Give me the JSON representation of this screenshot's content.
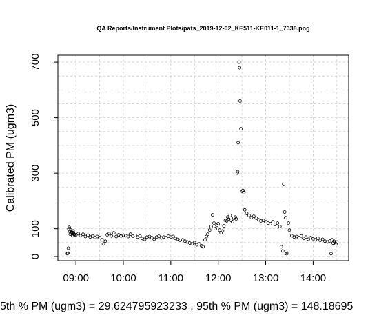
{
  "footer_text": "5th % PM (ugm3) =  29.624795923233 , 95th % PM (ugm3)  =  148.18695",
  "chart_data": {
    "type": "scatter",
    "title": "QA Reports/Instrument Plots/pats_2019-12-02_KE511-KE011-1_7338.png",
    "xlabel": "",
    "ylabel": "Calibrated PM (ugm3)",
    "x_unit": "time of day (hours)",
    "xlim": [
      8.62,
      14.75
    ],
    "ylim": [
      -15,
      725
    ],
    "x_ticks": [
      {
        "v": 9,
        "label": "09:00"
      },
      {
        "v": 10,
        "label": "10:00"
      },
      {
        "v": 11,
        "label": "11:00"
      },
      {
        "v": 12,
        "label": "12:00"
      },
      {
        "v": 13,
        "label": "13:00"
      },
      {
        "v": 14,
        "label": "14:00"
      }
    ],
    "y_ticks": [
      {
        "v": 0,
        "label": "0"
      },
      {
        "v": 100,
        "label": "100"
      },
      {
        "v": 300,
        "label": "300"
      },
      {
        "v": 500,
        "label": "500"
      },
      {
        "v": 700,
        "label": "700"
      }
    ],
    "grid_x": [
      9,
      9.5,
      10,
      10.5,
      11,
      11.5,
      12,
      12.5,
      13,
      13.5,
      14,
      14.5
    ],
    "grid_y": [
      0,
      50,
      100,
      200,
      250,
      300,
      350,
      400,
      450,
      500,
      550,
      600,
      650,
      700
    ],
    "grid": true,
    "marker": "open-circle",
    "points": [
      [
        8.82,
        10
      ],
      [
        8.83,
        12
      ],
      [
        8.84,
        30
      ],
      [
        8.85,
        100
      ],
      [
        8.86,
        105
      ],
      [
        8.87,
        90
      ],
      [
        8.88,
        80
      ],
      [
        8.89,
        95
      ],
      [
        8.9,
        85
      ],
      [
        8.91,
        88
      ],
      [
        8.92,
        82
      ],
      [
        8.93,
        75
      ],
      [
        8.94,
        92
      ],
      [
        8.95,
        86
      ],
      [
        8.96,
        80
      ],
      [
        8.97,
        78
      ],
      [
        9.0,
        78
      ],
      [
        9.05,
        82
      ],
      [
        9.1,
        75
      ],
      [
        9.15,
        80
      ],
      [
        9.2,
        72
      ],
      [
        9.25,
        77
      ],
      [
        9.3,
        70
      ],
      [
        9.35,
        74
      ],
      [
        9.4,
        69
      ],
      [
        9.45,
        72
      ],
      [
        9.5,
        68
      ],
      [
        9.55,
        60
      ],
      [
        9.58,
        45
      ],
      [
        9.62,
        55
      ],
      [
        9.66,
        78
      ],
      [
        9.7,
        82
      ],
      [
        9.75,
        74
      ],
      [
        9.8,
        85
      ],
      [
        9.85,
        72
      ],
      [
        9.9,
        78
      ],
      [
        9.95,
        74
      ],
      [
        10.0,
        77
      ],
      [
        10.05,
        75
      ],
      [
        10.1,
        72
      ],
      [
        10.15,
        80
      ],
      [
        10.2,
        73
      ],
      [
        10.25,
        76
      ],
      [
        10.3,
        70
      ],
      [
        10.35,
        74
      ],
      [
        10.4,
        65
      ],
      [
        10.45,
        62
      ],
      [
        10.5,
        70
      ],
      [
        10.55,
        72
      ],
      [
        10.6,
        68
      ],
      [
        10.65,
        62
      ],
      [
        10.7,
        70
      ],
      [
        10.75,
        73
      ],
      [
        10.8,
        67
      ],
      [
        10.85,
        70
      ],
      [
        10.9,
        68
      ],
      [
        10.95,
        73
      ],
      [
        11.0,
        70
      ],
      [
        11.05,
        72
      ],
      [
        11.1,
        65
      ],
      [
        11.15,
        62
      ],
      [
        11.2,
        58
      ],
      [
        11.25,
        60
      ],
      [
        11.3,
        55
      ],
      [
        11.35,
        52
      ],
      [
        11.4,
        48
      ],
      [
        11.45,
        45
      ],
      [
        11.5,
        50
      ],
      [
        11.55,
        42
      ],
      [
        11.6,
        45
      ],
      [
        11.65,
        38
      ],
      [
        11.68,
        35
      ],
      [
        11.72,
        60
      ],
      [
        11.75,
        72
      ],
      [
        11.78,
        80
      ],
      [
        11.82,
        95
      ],
      [
        11.85,
        108
      ],
      [
        11.88,
        150
      ],
      [
        11.91,
        120
      ],
      [
        11.94,
        100
      ],
      [
        11.97,
        112
      ],
      [
        12.0,
        118
      ],
      [
        12.03,
        95
      ],
      [
        12.06,
        85
      ],
      [
        12.09,
        92
      ],
      [
        12.12,
        110
      ],
      [
        12.15,
        130
      ],
      [
        12.18,
        128
      ],
      [
        12.2,
        142
      ],
      [
        12.22,
        135
      ],
      [
        12.25,
        148
      ],
      [
        12.27,
        130
      ],
      [
        12.3,
        125
      ],
      [
        12.33,
        138
      ],
      [
        12.36,
        142
      ],
      [
        12.38,
        135
      ],
      [
        12.4,
        300
      ],
      [
        12.41,
        305
      ],
      [
        12.42,
        410
      ],
      [
        12.44,
        700
      ],
      [
        12.45,
        680
      ],
      [
        12.46,
        560
      ],
      [
        12.48,
        460
      ],
      [
        12.5,
        235
      ],
      [
        12.52,
        238
      ],
      [
        12.54,
        230
      ],
      [
        12.56,
        168
      ],
      [
        12.6,
        155
      ],
      [
        12.65,
        148
      ],
      [
        12.7,
        140
      ],
      [
        12.75,
        145
      ],
      [
        12.8,
        138
      ],
      [
        12.85,
        132
      ],
      [
        12.9,
        128
      ],
      [
        12.95,
        130
      ],
      [
        13.0,
        125
      ],
      [
        13.05,
        120
      ],
      [
        13.1,
        118
      ],
      [
        13.15,
        125
      ],
      [
        13.2,
        115
      ],
      [
        13.25,
        120
      ],
      [
        13.3,
        108
      ],
      [
        13.33,
        35
      ],
      [
        13.36,
        20
      ],
      [
        13.38,
        260
      ],
      [
        13.4,
        160
      ],
      [
        13.42,
        140
      ],
      [
        13.44,
        10
      ],
      [
        13.46,
        12
      ],
      [
        13.48,
        120
      ],
      [
        13.5,
        95
      ],
      [
        13.55,
        75
      ],
      [
        13.6,
        70
      ],
      [
        13.65,
        72
      ],
      [
        13.7,
        68
      ],
      [
        13.75,
        74
      ],
      [
        13.8,
        65
      ],
      [
        13.85,
        70
      ],
      [
        13.9,
        62
      ],
      [
        13.95,
        68
      ],
      [
        14.0,
        64
      ],
      [
        14.05,
        60
      ],
      [
        14.1,
        66
      ],
      [
        14.15,
        58
      ],
      [
        14.2,
        62
      ],
      [
        14.25,
        55
      ],
      [
        14.3,
        52
      ],
      [
        14.35,
        56
      ],
      [
        14.38,
        10
      ],
      [
        14.4,
        60
      ],
      [
        14.42,
        48
      ],
      [
        14.44,
        55
      ],
      [
        14.46,
        50
      ],
      [
        14.48,
        45
      ],
      [
        14.5,
        52
      ]
    ]
  }
}
